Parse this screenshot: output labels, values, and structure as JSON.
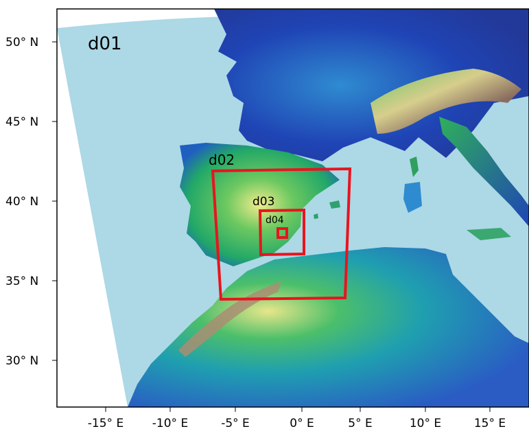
{
  "map": {
    "domain_labels": {
      "d01": "d01",
      "d02": "d02",
      "d03": "d03",
      "d04": "d04"
    },
    "lat_ticks": [
      "50° N",
      "45° N",
      "40° N",
      "35° N",
      "30° N"
    ],
    "lon_ticks": [
      "-15° E",
      "-10° E",
      "-5° E",
      "0° E",
      "5° E",
      "10° E",
      "15° E"
    ],
    "colors": {
      "sea": "#add8e6",
      "domain_box": "#e8141e",
      "terrain_low": "#1f44b5",
      "terrain_mid": "#2fb05a",
      "terrain_high": "#f2f08a",
      "terrain_peak": "#8a6a5a"
    },
    "nested_domains": [
      {
        "name": "d02",
        "lon": [
          -7,
          4
        ],
        "lat": [
          34,
          42
        ]
      },
      {
        "name": "d03",
        "lon": [
          -3,
          0.5
        ],
        "lat": [
          36.8,
          39.4
        ]
      },
      {
        "name": "d04",
        "lon": [
          -1.3,
          -0.8
        ],
        "lat": [
          37.8,
          38.3
        ]
      }
    ]
  }
}
